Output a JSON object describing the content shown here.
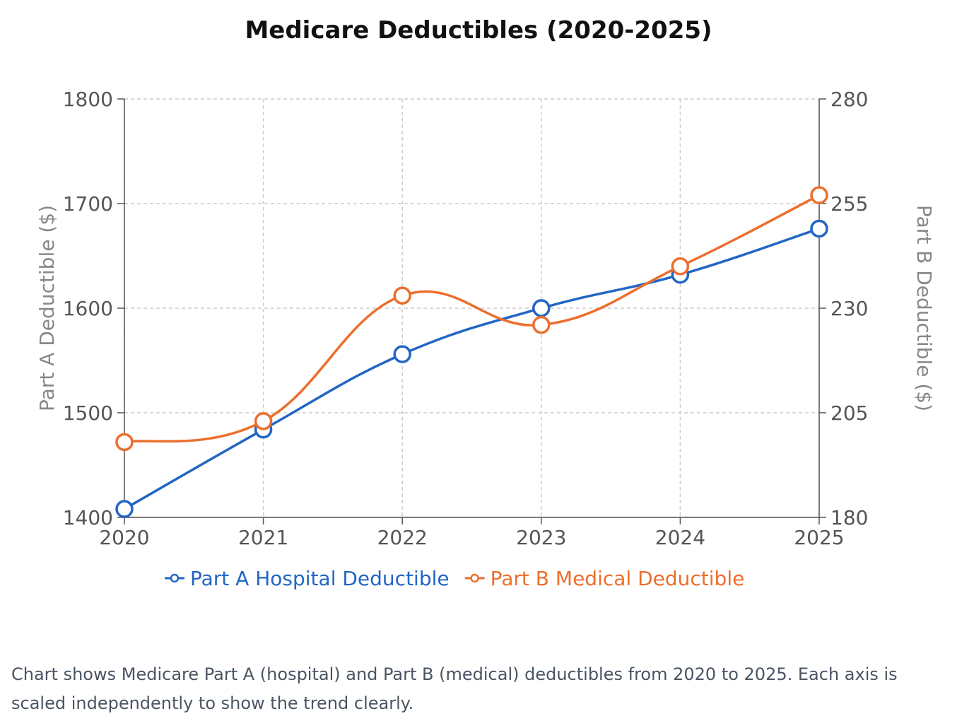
{
  "chart_data": {
    "type": "line",
    "title": "Medicare Deductibles (2020-2025)",
    "categories": [
      "2020",
      "2021",
      "2022",
      "2023",
      "2024",
      "2025"
    ],
    "series": [
      {
        "name": "Part A Hospital Deductible",
        "axis": "left",
        "color": "#2266c4",
        "values": [
          1408,
          1484,
          1556,
          1600,
          1632,
          1676
        ]
      },
      {
        "name": "Part B Medical Deductible",
        "axis": "right",
        "color": "#ec6f2d",
        "values": [
          198,
          203,
          233,
          226,
          240,
          257
        ]
      }
    ],
    "y_left": {
      "label": "Part A Deductible ($)",
      "ylim": [
        1400,
        1800
      ],
      "ticks": [
        1400,
        1500,
        1600,
        1700,
        1800
      ]
    },
    "y_right": {
      "label": "Part B Deductible ($)",
      "ylim": [
        180,
        280
      ],
      "ticks": [
        180,
        205,
        230,
        255,
        280
      ]
    },
    "grid": true,
    "legend_position": "bottom"
  },
  "caption": "Chart shows Medicare Part A (hospital) and Part B (medical) deductibles from 2020 to 2025. Each axis is scaled independently to show the trend clearly."
}
